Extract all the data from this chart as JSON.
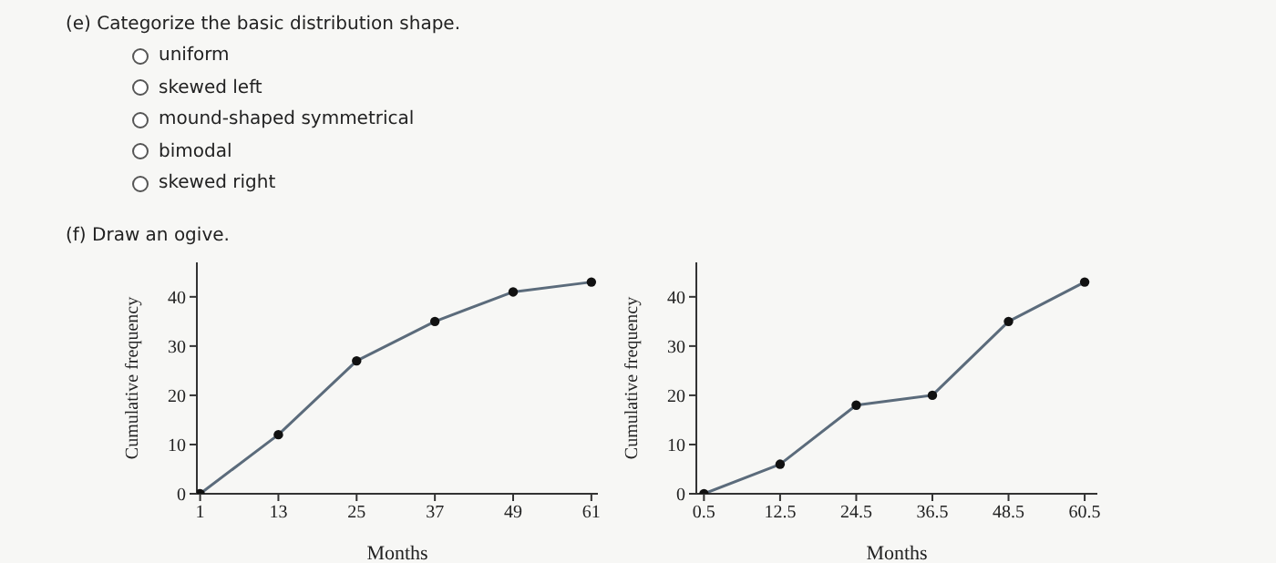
{
  "chart_data": [
    {
      "type": "other",
      "annotations": [
        "(e) Categorize the basic distribution shape.",
        "uniform",
        "skewed left",
        "mound-shaped symmetrical",
        "bimodal",
        "skewed right",
        "(f) Draw an ogive."
      ]
    },
    {
      "type": "line",
      "xlabel": "Months",
      "ylabel": "Cumulative frequency",
      "x": [
        1,
        13,
        25,
        37,
        49,
        61
      ],
      "values": [
        0,
        12,
        27,
        35,
        41,
        43
      ],
      "color": "#5b6b7b",
      "xlim": [
        0.5,
        62
      ],
      "xticks": [
        1,
        13,
        25,
        37,
        49,
        61
      ],
      "ylim": [
        0,
        47
      ],
      "yticks": [
        0,
        10,
        20,
        30,
        40
      ],
      "marker": "circle"
    },
    {
      "type": "line",
      "xlabel": "Months",
      "ylabel": "Cumulative frequency",
      "x": [
        0.5,
        12.5,
        24.5,
        36.5,
        48.5,
        60.5
      ],
      "values": [
        0,
        6,
        18,
        20,
        35,
        43
      ],
      "color": "#5b6b7b",
      "xlim": [
        -0.7,
        62.5
      ],
      "xticks": [
        0.5,
        12.5,
        24.5,
        36.5,
        48.5,
        60.5
      ],
      "ylim": [
        0,
        47
      ],
      "yticks": [
        0,
        10,
        20,
        30,
        40
      ],
      "marker": "circle"
    }
  ]
}
